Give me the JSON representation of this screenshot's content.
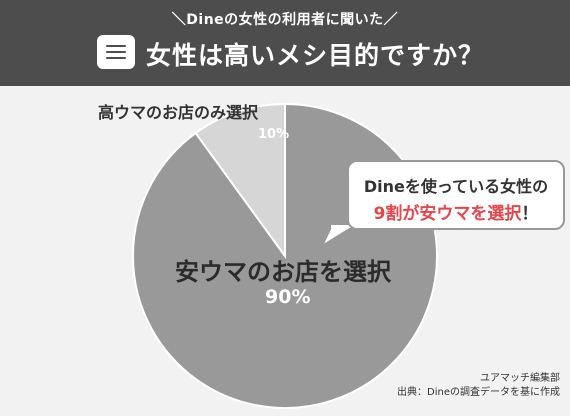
{
  "header": {
    "subtitle": "＼Dineの女性の利用者に聞いた／",
    "title": "女性は高いメシ目的ですか？",
    "menu_icon": "hamburger-menu-icon"
  },
  "callout": {
    "line1": "Dineを使っている女性の",
    "line2_red": "9割が安ウマを選択",
    "line2_end": "！"
  },
  "credits": {
    "line1": "ユアマッチ編集部",
    "line2": "出典：Dineの調査データを基に作成"
  },
  "labels": {
    "small_category": "高ウマのお店のみ選択",
    "small_percent": "10%",
    "big_category": "安ウマのお店を選択",
    "big_percent": "90%"
  },
  "colors": {
    "header_bg": "#4d4d4d",
    "page_bg": "#f2f2f2",
    "slice_large": "#999999",
    "slice_small": "#d6d6d6",
    "accent_red": "#e8454a"
  },
  "chart_data": {
    "type": "pie",
    "title": "女性は高いメシ目的ですか？",
    "slices": [
      {
        "label": "安ウマのお店を選択",
        "value": 90,
        "color": "#999999"
      },
      {
        "label": "高ウマのお店のみ選択",
        "value": 10,
        "color": "#d6d6d6"
      }
    ],
    "start": "top",
    "direction": "clockwise-large-first"
  }
}
